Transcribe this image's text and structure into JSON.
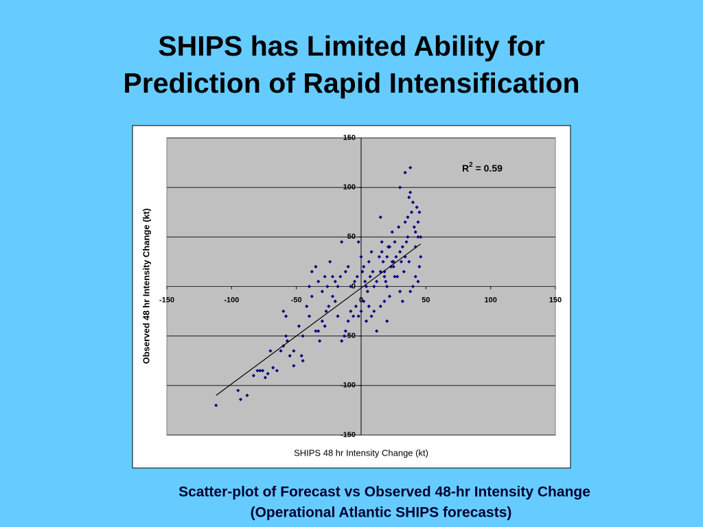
{
  "slide": {
    "title": [
      "SHIPS has Limited Ability for",
      "Prediction of Rapid Intensification"
    ],
    "caption": [
      "Scatter-plot of Forecast vs Observed 48-hr Intensity Change",
      "(Operational Atlantic SHIPS forecasts)"
    ]
  },
  "chart_data": {
    "type": "scatter",
    "xlabel": "SHIPS 48 hr Intensity Change (kt)",
    "ylabel": "Observed 48 hr Intensity Change (kt)",
    "xlim": [
      -150,
      150
    ],
    "ylim": [
      -150,
      150
    ],
    "xticks": [
      -150,
      -100,
      -50,
      0,
      50,
      100,
      150
    ],
    "yticks": [
      -150,
      -100,
      -50,
      0,
      50,
      100,
      150
    ],
    "grid": true,
    "color": "#000080",
    "plot_background": "#c0c0c0",
    "x": [
      -112,
      -95,
      -93,
      -88,
      -83,
      -80,
      -78,
      -76,
      -74,
      -72,
      -68,
      -65,
      -62,
      -60,
      -58,
      -57,
      -55,
      -52,
      -48,
      -46,
      -45,
      -60,
      -58,
      -45,
      -42,
      -40,
      -38,
      -35,
      -33,
      -32,
      -30,
      -28,
      -27,
      -25,
      -22,
      -20,
      -18,
      -15,
      -13,
      -12,
      -10,
      -8,
      -6,
      -4,
      -2,
      0,
      2,
      4,
      6,
      8,
      10,
      12,
      15,
      18,
      20,
      -40,
      -38,
      -35,
      -33,
      -30,
      -28,
      -26,
      -24,
      -22,
      -20,
      -18,
      -16,
      -15,
      -12,
      -10,
      -8,
      -5,
      -3,
      -2,
      0,
      1,
      2,
      3,
      4,
      5,
      6,
      7,
      8,
      9,
      10,
      12,
      14,
      15,
      16,
      18,
      20,
      22,
      24,
      25,
      26,
      15,
      16,
      17,
      18,
      19,
      20,
      21,
      22,
      23,
      24,
      25,
      26,
      27,
      28,
      29,
      30,
      30,
      31,
      32,
      33,
      34,
      34,
      35,
      36,
      36,
      37,
      37,
      34,
      38,
      38,
      39,
      40,
      41,
      42,
      42,
      43,
      44,
      44,
      45,
      46,
      30,
      32,
      38,
      40,
      42,
      44,
      45,
      46,
      -52,
      -70
    ],
    "y": [
      -120,
      -105,
      -114,
      -110,
      -90,
      -85,
      -85,
      -85,
      -92,
      -88,
      -82,
      -85,
      -65,
      -60,
      -50,
      -55,
      -70,
      -65,
      -40,
      -70,
      -75,
      -25,
      -30,
      -50,
      -20,
      -30,
      -10,
      -45,
      -45,
      -55,
      -35,
      -40,
      -25,
      -20,
      -10,
      -15,
      -30,
      -55,
      -50,
      -45,
      -35,
      -25,
      -30,
      -20,
      -30,
      -25,
      -15,
      -35,
      -20,
      -30,
      -25,
      -45,
      -20,
      -15,
      -35,
      0,
      15,
      20,
      5,
      -5,
      10,
      0,
      25,
      10,
      5,
      0,
      10,
      45,
      15,
      20,
      0,
      5,
      10,
      45,
      30,
      15,
      20,
      5,
      0,
      -5,
      25,
      10,
      35,
      15,
      0,
      5,
      30,
      15,
      45,
      10,
      0,
      40,
      25,
      20,
      10,
      70,
      35,
      25,
      15,
      5,
      30,
      40,
      -10,
      20,
      55,
      25,
      45,
      30,
      10,
      60,
      35,
      100,
      25,
      40,
      15,
      30,
      65,
      45,
      70,
      50,
      90,
      25,
      115,
      120,
      95,
      75,
      85,
      60,
      40,
      55,
      80,
      65,
      50,
      75,
      30,
      -5,
      -15,
      -5,
      0,
      10,
      5,
      20,
      50,
      -80,
      -65
    ],
    "trendline": {
      "x": [
        -112,
        46
      ],
      "y": [
        -110,
        43
      ],
      "color": "#000000"
    },
    "annotation": {
      "base": "R",
      "sup": "2",
      "rest": " = 0.59"
    }
  }
}
